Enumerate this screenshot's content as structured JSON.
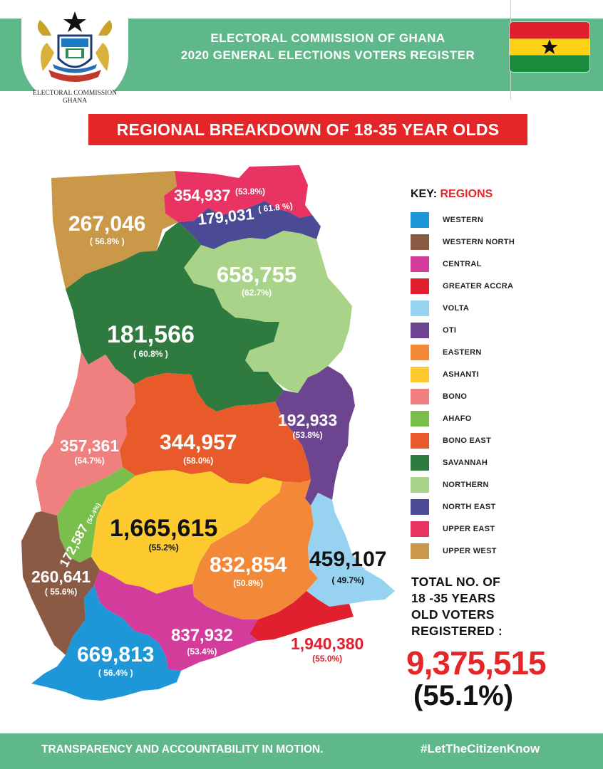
{
  "header": {
    "title_line1": "ELECTORAL COMMISSION OF GHANA",
    "title_line2": "2020 GENERAL ELECTIONS VOTERS REGISTER",
    "logo_caption_line1": "ELECTORAL COMMISSION",
    "logo_caption_line2": "GHANA",
    "logo_icon": "electoral-commission-coat-of-arms",
    "flag_icon": "ghana-flag"
  },
  "banner": "REGIONAL BREAKDOWN OF 18-35 YEAR OLDS",
  "key": {
    "title_prefix": "KEY:",
    "title_suffix": "REGIONS",
    "items": [
      {
        "label": "WESTERN",
        "color": "#1e97d8"
      },
      {
        "label": "WESTERN NORTH",
        "color": "#8b5a45"
      },
      {
        "label": "CENTRAL",
        "color": "#d43c9c"
      },
      {
        "label": "GREATER ACCRA",
        "color": "#e0202e"
      },
      {
        "label": "VOLTA",
        "color": "#97d3f0"
      },
      {
        "label": "OTI",
        "color": "#6d4490"
      },
      {
        "label": "EASTERN",
        "color": "#f48839"
      },
      {
        "label": "ASHANTI",
        "color": "#fcca2f"
      },
      {
        "label": "BONO",
        "color": "#f08080"
      },
      {
        "label": "AHAFO",
        "color": "#7abf4b"
      },
      {
        "label": "BONO EAST",
        "color": "#e85a29"
      },
      {
        "label": "SAVANNAH",
        "color": "#2f7a3e"
      },
      {
        "label": "NORTHERN",
        "color": "#a8d389"
      },
      {
        "label": "NORTH EAST",
        "color": "#4a4b94"
      },
      {
        "label": "UPPER EAST",
        "color": "#e83363"
      },
      {
        "label": "UPPER WEST",
        "color": "#c99849"
      }
    ]
  },
  "regions": {
    "upper_west": {
      "value": "267,046",
      "pct": "( 56.8% )"
    },
    "upper_east": {
      "value": "354,937",
      "pct": "(53.8%)"
    },
    "north_east": {
      "value": "179,031",
      "pct": "( 61.8 %)"
    },
    "northern": {
      "value": "658,755",
      "pct": "(62.7%)"
    },
    "savannah": {
      "value": "181,566",
      "pct": "( 60.8% )"
    },
    "oti": {
      "value": "192,933",
      "pct": "(53.8%)"
    },
    "bono": {
      "value": "357,361",
      "pct": "(54.7%)"
    },
    "bono_east": {
      "value": "344,957",
      "pct": "(58.0%)"
    },
    "ahafo": {
      "value": "172,587",
      "pct": "(54.4%)"
    },
    "ashanti": {
      "value": "1,665,615",
      "pct": "(55.2%)"
    },
    "eastern": {
      "value": "832,854",
      "pct": "(50.8%)"
    },
    "volta": {
      "value": "459,107",
      "pct": "( 49.7%)"
    },
    "western_north": {
      "value": "260,641",
      "pct": "( 55.6%)"
    },
    "western": {
      "value": "669,813",
      "pct": "( 56.4% )"
    },
    "central": {
      "value": "837,932",
      "pct": "(53.4%)"
    },
    "greater_accra": {
      "value": "1,940,380",
      "pct": "(55.0%)"
    }
  },
  "total": {
    "label_line1": "TOTAL NO. OF",
    "label_line2": "18 -35  YEARS",
    "label_line3": "OLD VOTERS",
    "label_line4": "REGISTERED :",
    "value": "9,375,515",
    "pct": "(55.1%)"
  },
  "footer": {
    "left": "TRANSPARENCY AND ACCOUNTABILITY IN MOTION.",
    "right": "#LetTheCitizenKnow"
  }
}
